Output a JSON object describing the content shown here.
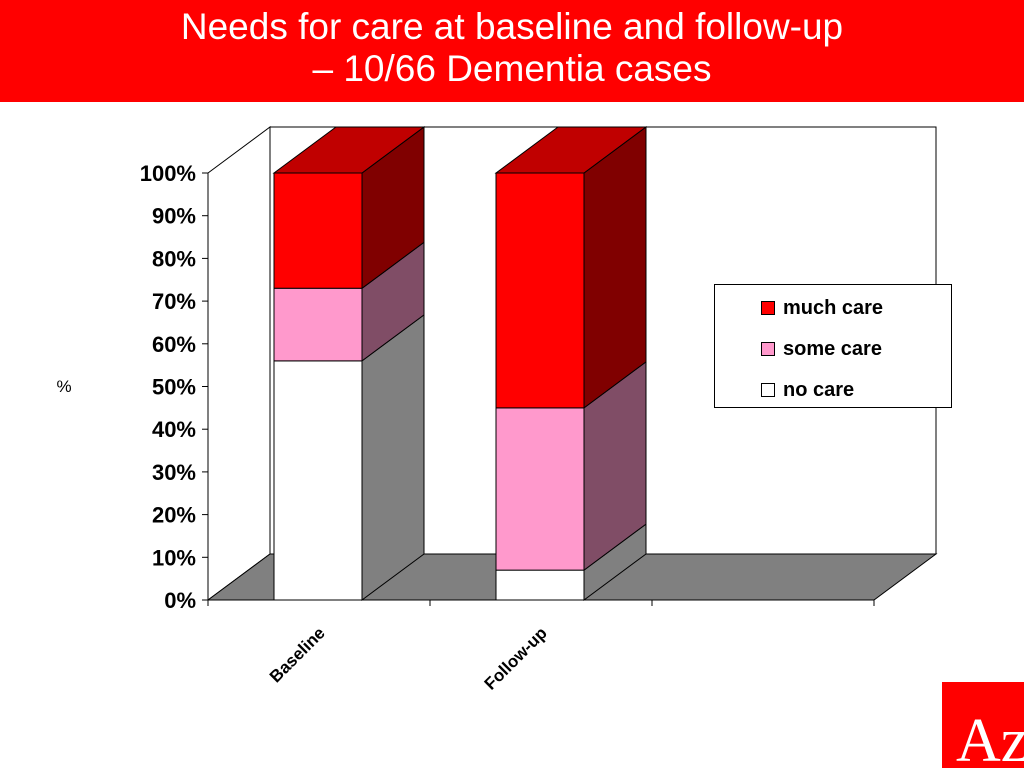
{
  "title": {
    "line1": "Needs for care at baseline and follow-up",
    "line2": "– 10/66 Dementia cases"
  },
  "logo": {
    "text": "Az"
  },
  "chart_data": {
    "type": "bar",
    "stacked": true,
    "percent": true,
    "three_d": true,
    "categories": [
      "Baseline",
      "Follow-up"
    ],
    "series": [
      {
        "name": "no care",
        "values": [
          56,
          7
        ],
        "color": "#ffffff",
        "side_color": "#808080",
        "top_color": "#c0c0c0"
      },
      {
        "name": "some care",
        "values": [
          17,
          38
        ],
        "color": "#ff99cc",
        "side_color": "#804d66",
        "top_color": "#ffc4e0"
      },
      {
        "name": "much care",
        "values": [
          27,
          55
        ],
        "color": "#ff0000",
        "side_color": "#800000",
        "top_color": "#c00000"
      }
    ],
    "yticks": [
      "0%",
      "10%",
      "20%",
      "30%",
      "40%",
      "50%",
      "60%",
      "70%",
      "80%",
      "90%",
      "100%"
    ],
    "ylabel": "%",
    "ylim": [
      0,
      100
    ],
    "legend_position": "right",
    "legend_order": [
      "much care",
      "some care",
      "no care"
    ],
    "floor_color": "#808080"
  }
}
